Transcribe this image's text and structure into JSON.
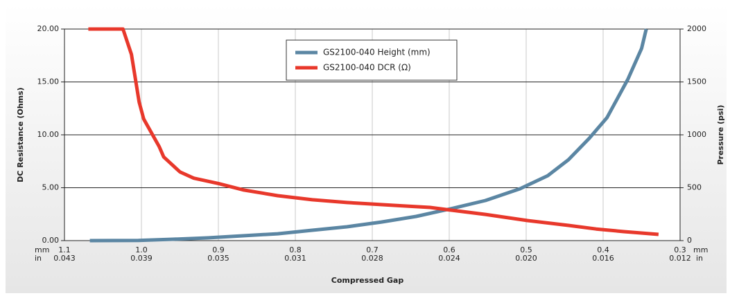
{
  "chart_data": {
    "type": "line",
    "x_title": "Compressed Gap",
    "y_title": "DC Resistance (Ohms)",
    "y2_title": "Pressure (psi)",
    "x_units": [
      "mm",
      "in"
    ],
    "xlim": [
      1.1,
      0.3
    ],
    "xticks": [
      1.1,
      {
        "value": 1.0,
        "label": "1.0"
      },
      0.9,
      0.8,
      0.7,
      0.6,
      0.5,
      0.4,
      0.3
    ],
    "xtick_secondary_labels": [
      "0.043",
      "0.039",
      "0.035",
      "0.031",
      "0.028",
      "0.024",
      "0.020",
      "0.016",
      "0.012"
    ],
    "ylim": [
      0,
      20
    ],
    "yticks": [
      {
        "value": 0,
        "label": "0.00"
      },
      {
        "value": 5,
        "label": "5.00"
      },
      {
        "value": 10,
        "label": "10.00"
      },
      {
        "value": 15,
        "label": "15.00"
      },
      {
        "value": 20,
        "label": "20.00"
      }
    ],
    "y2lim": [
      0,
      2000
    ],
    "y2ticks": [
      0,
      500,
      1000,
      1500,
      2000
    ],
    "grid": true,
    "legend": "top",
    "series": [
      {
        "name": "GS2100-040 Height (mm)",
        "color": "#5b86a3",
        "axis": "y2",
        "x": [
          1.067,
          1.004,
          0.959,
          0.914,
          0.868,
          0.823,
          0.778,
          0.733,
          0.688,
          0.643,
          0.598,
          0.553,
          0.508,
          0.472,
          0.445,
          0.418,
          0.395,
          0.368,
          0.35,
          0.344
        ],
        "values": [
          0,
          2,
          13,
          26,
          46,
          65,
          98,
          131,
          176,
          229,
          301,
          379,
          490,
          614,
          765,
          967,
          1163,
          1523,
          1817,
          2000
        ]
      },
      {
        "name": "GS2100-040 DCR (Ω)",
        "color": "#e8382b",
        "x": [
          1.069,
          1.024,
          1.013,
          1.003,
          0.997,
          0.977,
          0.971,
          0.95,
          0.932,
          0.9,
          0.868,
          0.823,
          0.778,
          0.733,
          0.67,
          0.625,
          0.598,
          0.553,
          0.499,
          0.445,
          0.409,
          0.373,
          0.328
        ],
        "values": [
          20,
          20,
          17.6,
          13.1,
          11.5,
          8.9,
          7.9,
          6.5,
          5.9,
          5.4,
          4.8,
          4.25,
          3.86,
          3.6,
          3.33,
          3.14,
          2.88,
          2.48,
          1.9,
          1.44,
          1.1,
          0.85,
          0.59
        ]
      }
    ]
  }
}
